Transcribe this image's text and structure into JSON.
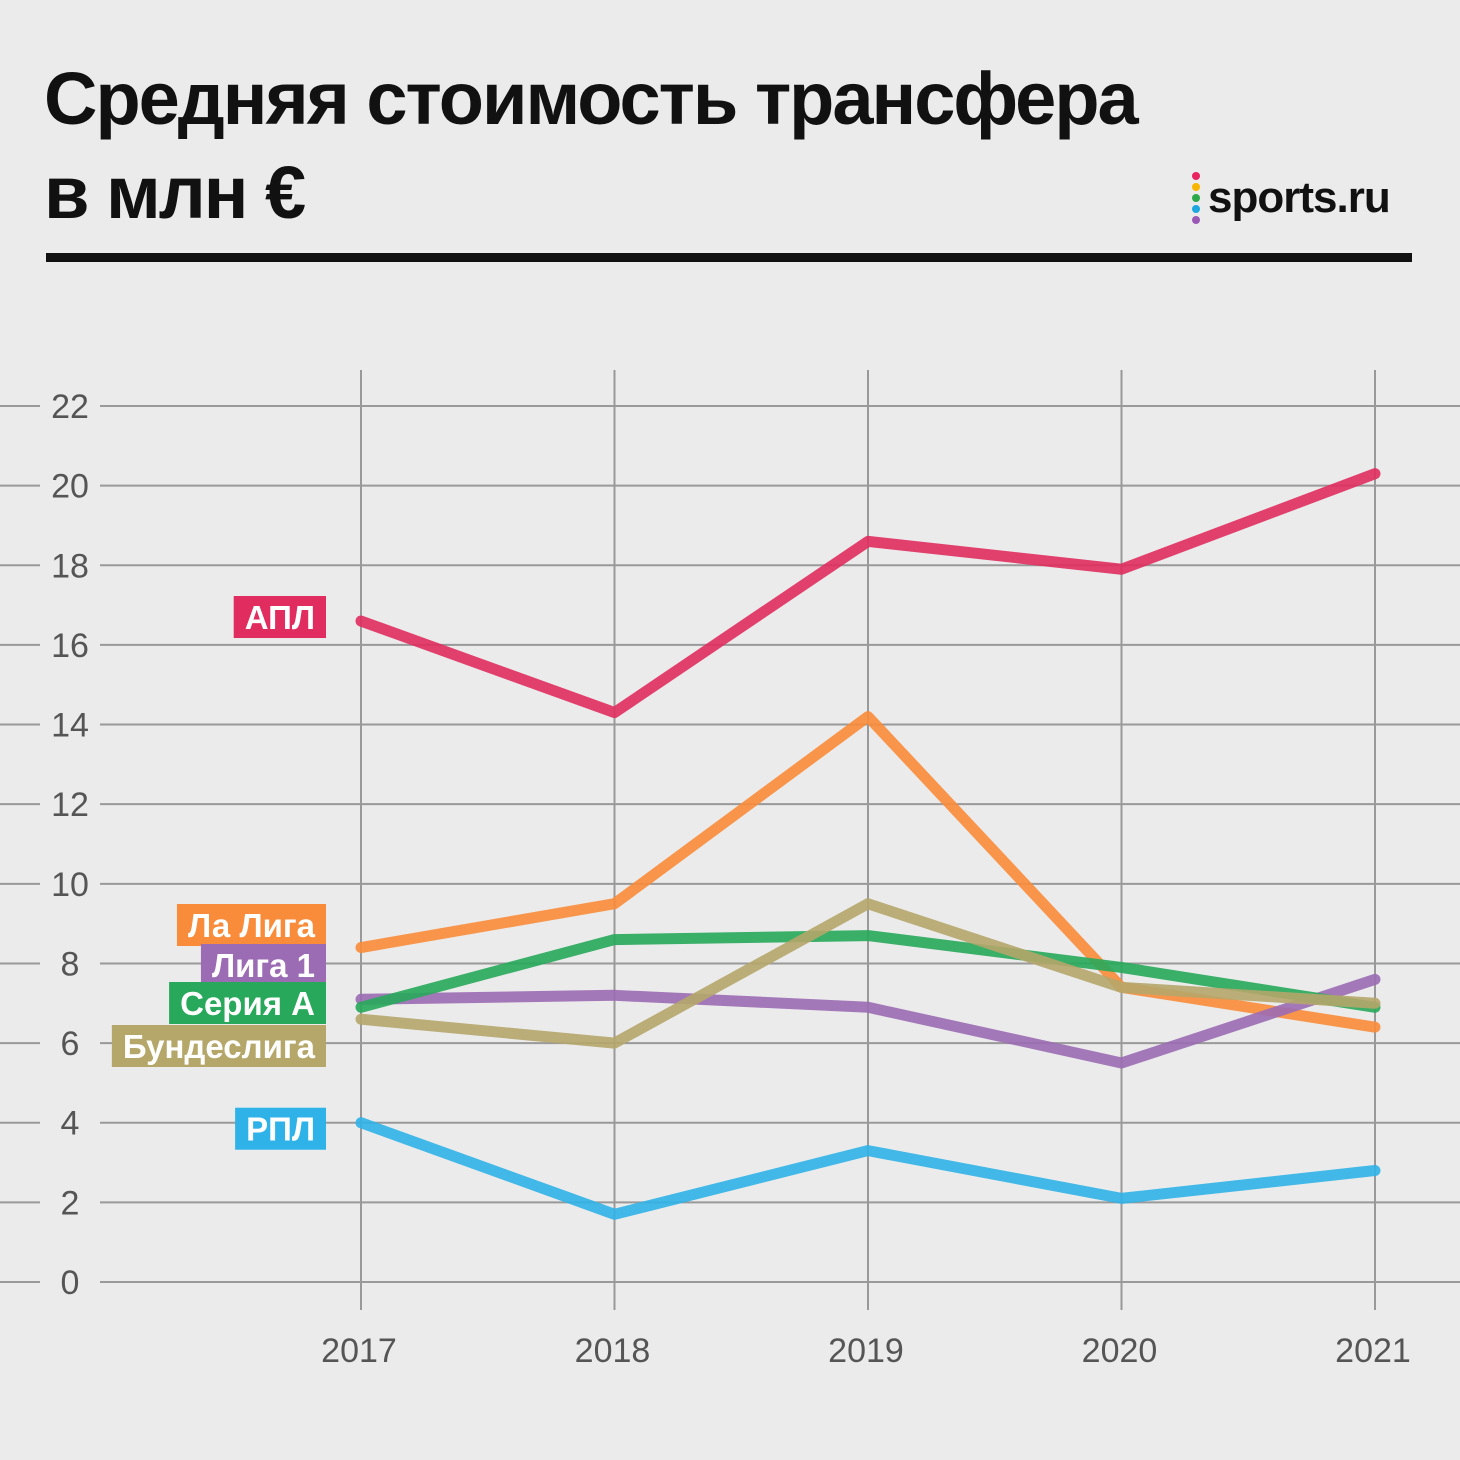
{
  "title": {
    "line1": "Средняя стоимость трансфера",
    "line2": "в млн €"
  },
  "logo": {
    "text": "sports.ru",
    "dot_colors": [
      "#e8235f",
      "#f7b500",
      "#2ba84a",
      "#1ea7e1",
      "#9b59b6"
    ]
  },
  "chart_data": {
    "type": "line",
    "title": "Средняя стоимость трансфера в млн €",
    "xlabel": "",
    "ylabel": "",
    "ylim": [
      0,
      22
    ],
    "yticks": [
      "0",
      "2",
      "4",
      "6",
      "8",
      "10",
      "12",
      "14",
      "16",
      "18",
      "20",
      "22"
    ],
    "categories": [
      "2017",
      "2018",
      "2019",
      "2020",
      "2021"
    ],
    "grid": true,
    "series": [
      {
        "name": "АПЛ",
        "color": "#e02c5e",
        "values": [
          16.6,
          14.3,
          18.6,
          17.9,
          20.3
        ]
      },
      {
        "name": "Ла Лига",
        "color": "#f98c3a",
        "values": [
          8.4,
          9.5,
          14.2,
          7.4,
          6.4
        ]
      },
      {
        "name": "Лига 1",
        "color": "#9b6bb4",
        "values": [
          7.1,
          7.2,
          6.9,
          5.5,
          7.6
        ]
      },
      {
        "name": "Серия А",
        "color": "#27a85a",
        "values": [
          6.9,
          8.6,
          8.7,
          7.9,
          6.9
        ]
      },
      {
        "name": "Бундеслига",
        "color": "#b5a66a",
        "values": [
          6.6,
          6.0,
          9.5,
          7.4,
          7.0
        ]
      },
      {
        "name": "РПЛ",
        "color": "#2fb2e8",
        "values": [
          4.0,
          1.7,
          3.3,
          2.1,
          2.8
        ]
      }
    ]
  }
}
